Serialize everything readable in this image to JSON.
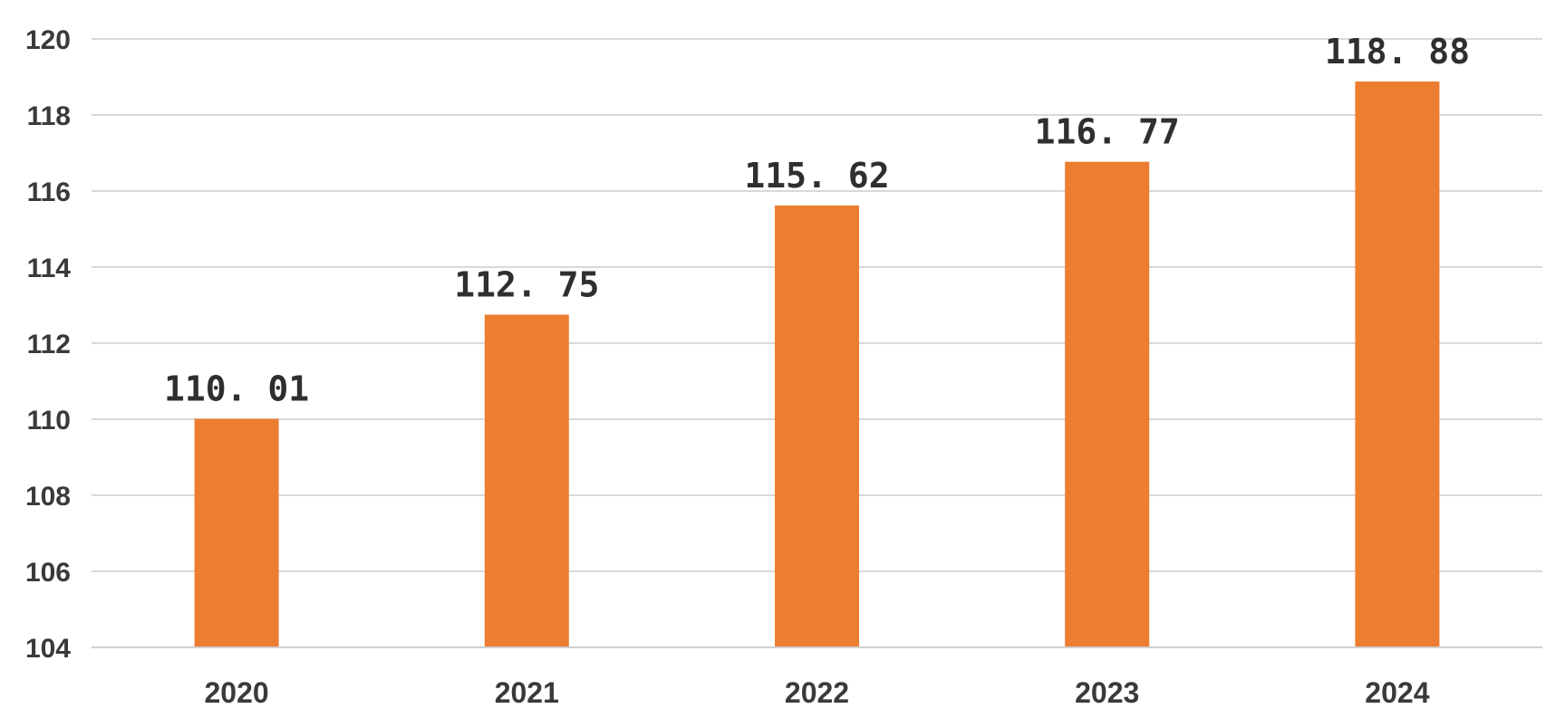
{
  "chart_data": {
    "type": "bar",
    "categories": [
      "2020",
      "2021",
      "2022",
      "2023",
      "2024"
    ],
    "values": [
      110.01,
      112.75,
      115.62,
      116.77,
      118.88
    ],
    "value_labels": [
      "110. 01",
      "112. 75",
      "115. 62",
      "116. 77",
      "118. 88"
    ],
    "title": "",
    "xlabel": "",
    "ylabel": "",
    "ylim": [
      104,
      120
    ],
    "yticks": [
      "104",
      "106",
      "108",
      "110",
      "112",
      "114",
      "116",
      "118",
      "120"
    ],
    "grid": true,
    "legend": "none",
    "colors": {
      "bar": "#ED7D31",
      "grid": "#D9D9D9",
      "text": "#3A3A3A"
    }
  }
}
